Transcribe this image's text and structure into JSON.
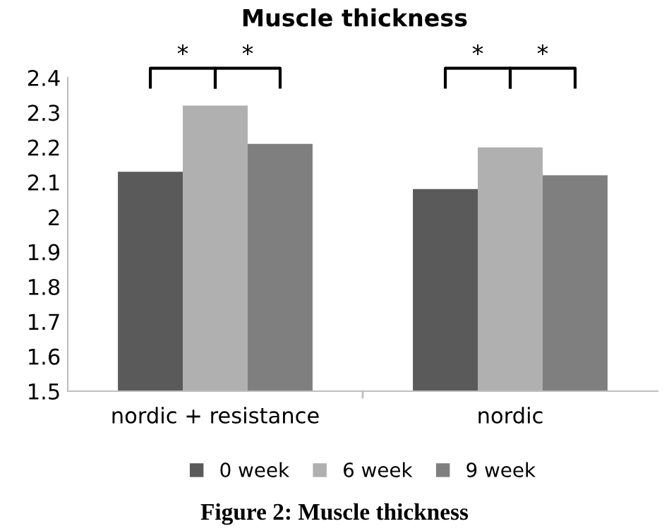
{
  "chart_data": {
    "type": "bar",
    "title": "Muscle thickness",
    "categories": [
      "nordic + resistance",
      "nordic"
    ],
    "series": [
      {
        "name": "0 week",
        "color": "#5a5a5a",
        "values": [
          2.13,
          2.08
        ]
      },
      {
        "name": "6 week",
        "color": "#b0b0b0",
        "values": [
          2.32,
          2.2
        ]
      },
      {
        "name": "9 week",
        "color": "#7f7f7f",
        "values": [
          2.21,
          2.12
        ]
      }
    ],
    "ylim": [
      1.5,
      2.4
    ],
    "yticks": [
      1.5,
      1.6,
      1.7,
      1.8,
      1.9,
      2,
      2.1,
      2.2,
      2.3,
      2.4
    ],
    "grid": false,
    "legend": "bottom",
    "annotations": [
      "*",
      "*",
      "*",
      "*",
      "Figure 2: Muscle thickness"
    ]
  }
}
